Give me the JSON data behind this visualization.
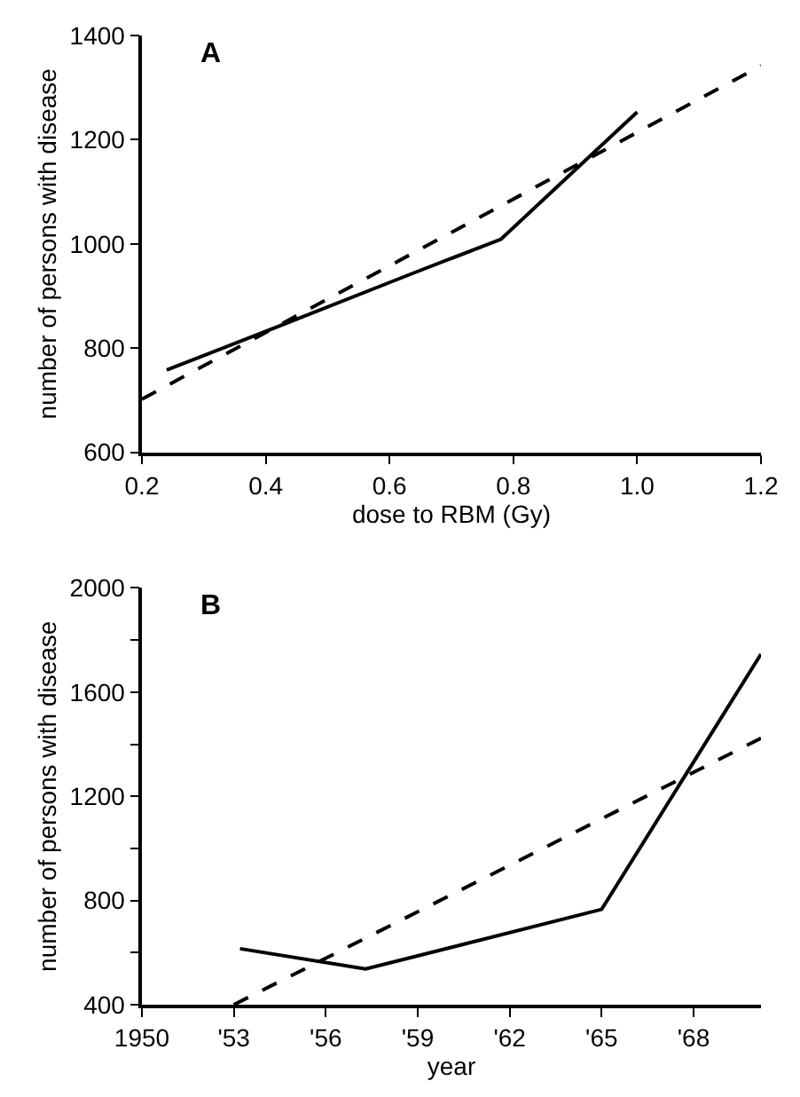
{
  "chart_data": [
    {
      "type": "line",
      "title": "A",
      "xlabel": "dose to RBM (Gy)",
      "ylabel": "number of persons with disease",
      "xlim": [
        0.2,
        1.2
      ],
      "ylim": [
        600,
        1400
      ],
      "xticks": [
        0.2,
        0.4,
        0.6,
        0.8,
        {
          "value": 1.0,
          "label": "1.0"
        },
        1.2
      ],
      "yticks": [
        600,
        800,
        1000,
        1200,
        1400
      ],
      "series": [
        {
          "color": "#000000",
          "line_style": "solid",
          "x": [
            0.24,
            0.43,
            0.63,
            0.78,
            1.0
          ],
          "values": [
            758,
            846,
            940,
            1009,
            1253
          ]
        },
        {
          "type": "line",
          "color": "#000000",
          "line_style": "dashed",
          "x": [
            0.2,
            1.2
          ],
          "values": [
            702,
            1342
          ]
        }
      ]
    },
    {
      "type": "line",
      "title": "B",
      "xlabel": "year",
      "ylabel": "number of persons with disease",
      "xlim": [
        1950,
        1970.2
      ],
      "ylim": [
        400,
        2000
      ],
      "xticks": [
        1950,
        {
          "value": 1953,
          "label": "'53"
        },
        {
          "value": 1956,
          "label": "'56"
        },
        {
          "value": 1959,
          "label": "'59"
        },
        {
          "value": 1962,
          "label": "'62"
        },
        {
          "value": 1965,
          "label": "'65"
        },
        {
          "value": 1968,
          "label": "'68"
        }
      ],
      "yticks": [
        400,
        {
          "value": 600,
          "label": null
        },
        800,
        {
          "value": 1000,
          "label": null
        },
        1200,
        {
          "value": 1400,
          "label": null
        },
        1600,
        {
          "value": 1800,
          "label": null
        },
        2000
      ],
      "series": [
        {
          "color": "#000000",
          "line_style": "solid",
          "x": [
            1953.2,
            1957.3,
            1965,
            1970.2
          ],
          "values": [
            615,
            537,
            766,
            1746
          ]
        },
        {
          "type": "line",
          "color": "#000000",
          "line_style": "dashed",
          "x": [
            1953,
            1970.2
          ],
          "values": [
            400,
            1423
          ]
        }
      ]
    }
  ]
}
